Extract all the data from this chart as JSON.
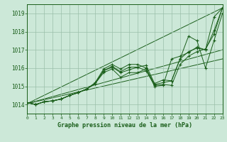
{
  "xlabel": "Graphe pression niveau de la mer (hPa)",
  "background_color": "#cce8d8",
  "plot_bg_color": "#cce8d8",
  "line_color": "#1a5e1a",
  "grid_color": "#9abfaa",
  "text_color": "#1a5e1a",
  "xlim": [
    0,
    23
  ],
  "ylim": [
    1013.5,
    1019.5
  ],
  "yticks": [
    1014,
    1015,
    1016,
    1017,
    1018,
    1019
  ],
  "xticks": [
    0,
    1,
    2,
    3,
    4,
    5,
    6,
    7,
    8,
    9,
    10,
    11,
    12,
    13,
    14,
    15,
    16,
    17,
    18,
    19,
    20,
    21,
    22,
    23
  ],
  "series": [
    [
      1014.1,
      1014.0,
      1014.15,
      1014.2,
      1014.3,
      1014.5,
      1014.65,
      1014.85,
      1015.15,
      1015.85,
      1016.05,
      1015.75,
      1015.9,
      1016.05,
      1015.85,
      1015.05,
      1015.1,
      1015.05,
      1016.2,
      1016.65,
      1016.9,
      1017.05,
      1017.85,
      1019.3
    ],
    [
      1014.1,
      1014.0,
      1014.15,
      1014.2,
      1014.3,
      1014.5,
      1014.65,
      1014.85,
      1015.15,
      1015.75,
      1015.95,
      1015.5,
      1015.75,
      1015.75,
      1015.95,
      1015.0,
      1015.05,
      1016.5,
      1016.65,
      1016.85,
      1017.15,
      1017.0,
      1018.8,
      1019.3
    ],
    [
      1014.1,
      1014.0,
      1014.15,
      1014.2,
      1014.3,
      1014.5,
      1014.65,
      1014.85,
      1015.15,
      1015.85,
      1016.1,
      1015.8,
      1016.05,
      1016.05,
      1016.15,
      1015.15,
      1015.35,
      1015.3,
      1016.5,
      1016.9,
      1017.1,
      1017.0,
      1018.05,
      1019.3
    ],
    [
      1014.1,
      1014.0,
      1014.15,
      1014.2,
      1014.3,
      1014.5,
      1014.65,
      1014.85,
      1015.2,
      1015.95,
      1016.2,
      1015.95,
      1016.2,
      1016.2,
      1016.0,
      1015.1,
      1015.2,
      1015.3,
      1016.5,
      1017.75,
      1017.5,
      1016.0,
      1017.5,
      1019.0
    ]
  ],
  "straight_lines": [
    [
      1014.05,
      1019.3
    ],
    [
      1014.05,
      1017.0
    ],
    [
      1014.05,
      1016.5
    ]
  ]
}
